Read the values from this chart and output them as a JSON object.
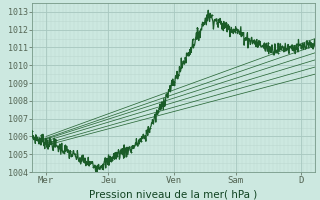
{
  "xlabel": "Pression niveau de la mer( hPa )",
  "ylim": [
    1004,
    1013.5
  ],
  "xlim": [
    0,
    100
  ],
  "yticks": [
    1004,
    1005,
    1006,
    1007,
    1008,
    1009,
    1010,
    1011,
    1012,
    1013
  ],
  "xtick_labels": [
    "Mer",
    "Jeu",
    "Ven",
    "Sam",
    "D"
  ],
  "xtick_positions": [
    5,
    27,
    50,
    72,
    95
  ],
  "bg_color": "#cce8e0",
  "grid_color_major": "#a8c8c0",
  "grid_color_minor": "#bcd8d0",
  "line_color": "#1a5c28",
  "ensemble_starts_x": 5,
  "ensemble_starts_y": [
    1006.0,
    1005.9,
    1005.85,
    1005.75,
    1005.6,
    1005.5
  ],
  "ensemble_ends_x": 100,
  "ensemble_ends_y": [
    1011.5,
    1011.1,
    1010.7,
    1010.3,
    1009.9,
    1009.5
  ]
}
